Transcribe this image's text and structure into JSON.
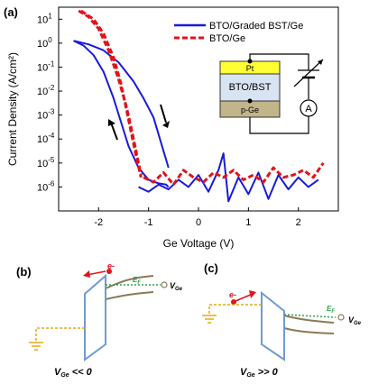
{
  "panels": {
    "a": "(a)",
    "b": "(b)",
    "c": "(c)"
  },
  "chart_data": {
    "type": "line",
    "title": "",
    "xlabel": "Ge Voltage (V)",
    "ylabel": "Current Density  (A/cm²)",
    "xlim": [
      -2.8,
      2.8
    ],
    "ylim_log10": [
      -7,
      1.5
    ],
    "xticks": [
      -2,
      -1,
      0,
      1,
      2
    ],
    "xtick_labels": [
      "-2",
      "-1",
      "0",
      "1",
      "2"
    ],
    "yticks_exp": [
      1,
      0,
      -1,
      -2,
      -3,
      -4,
      -5,
      -6
    ],
    "ytick_labels": [
      {
        "base": "10",
        "exp": "1"
      },
      {
        "base": "10",
        "exp": "0"
      },
      {
        "base": "10",
        "exp": "-1"
      },
      {
        "base": "10",
        "exp": "-2"
      },
      {
        "base": "10",
        "exp": "-3"
      },
      {
        "base": "10",
        "exp": "-4"
      },
      {
        "base": "10",
        "exp": "-5"
      },
      {
        "base": "10",
        "exp": "-6"
      }
    ],
    "legend_position": "top-right",
    "series": [
      {
        "name": "BTO/Graded BST/Ge",
        "color": "#1a1adb",
        "style": "solid",
        "branches": [
          {
            "x": [
              -2.5,
              -2.3,
              -2.1,
              -1.9,
              -1.7,
              -1.55,
              -1.4,
              -1.2,
              -1.0,
              -0.8,
              -0.65,
              -0.6
            ],
            "log10_y": [
              0.1,
              -0.1,
              -0.5,
              -1.2,
              -2.3,
              -3.3,
              -4.3,
              -5.2,
              -5.7,
              -5.85,
              -5.9,
              -6.0
            ]
          },
          {
            "x": [
              -2.5,
              -2.2,
              -1.9,
              -1.6,
              -1.3,
              -1.1,
              -0.9,
              -0.8,
              -0.7,
              -0.6
            ],
            "log10_y": [
              0.1,
              -0.05,
              -0.3,
              -0.8,
              -1.6,
              -2.3,
              -3.1,
              -3.8,
              -4.5,
              -5.2
            ]
          }
        ],
        "noise_x": [
          -1.2,
          -1.0,
          -0.8,
          -0.6,
          -0.4,
          -0.2,
          0.0,
          0.2,
          0.4,
          0.5,
          0.6,
          0.8,
          1.0,
          1.2,
          1.4,
          1.6,
          1.8,
          2.0,
          2.2,
          2.4
        ],
        "noise_log10_y": [
          -6.0,
          -6.2,
          -5.9,
          -6.1,
          -5.7,
          -6.0,
          -5.5,
          -6.2,
          -5.3,
          -4.6,
          -6.6,
          -5.6,
          -6.3,
          -5.4,
          -6.5,
          -5.5,
          -6.1,
          -5.6,
          -6.0,
          -5.7
        ]
      },
      {
        "name": "BTO/Ge",
        "color": "#e0141a",
        "style": "dashed",
        "branches": [
          {
            "x": [
              -2.4,
              -2.2,
              -2.0,
              -1.8,
              -1.6,
              -1.45,
              -1.35,
              -1.25,
              -1.15
            ],
            "log10_y": [
              1.35,
              1.1,
              0.6,
              -0.3,
              -1.5,
              -2.6,
              -3.5,
              -4.5,
              -5.5
            ]
          },
          {
            "x": [
              -2.35,
              -2.1,
              -1.9,
              -1.7,
              -1.55,
              -1.45,
              -1.35,
              -1.25,
              -1.15
            ],
            "log10_y": [
              1.35,
              1.0,
              0.4,
              -0.6,
              -1.7,
              -2.7,
              -3.7,
              -4.7,
              -5.6
            ]
          }
        ],
        "noise_x": [
          -1.1,
          -0.9,
          -0.7,
          -0.5,
          -0.3,
          -0.1,
          0.1,
          0.3,
          0.5,
          0.7,
          0.9,
          1.1,
          1.3,
          1.5,
          1.7,
          1.9,
          2.1,
          2.3,
          2.5
        ],
        "noise_log10_y": [
          -5.6,
          -5.8,
          -5.4,
          -5.9,
          -5.3,
          -5.6,
          -5.8,
          -5.4,
          -5.6,
          -5.3,
          -5.7,
          -5.5,
          -5.8,
          -5.2,
          -5.6,
          -5.5,
          -5.3,
          -5.6,
          -5.0
        ]
      }
    ],
    "inset_labels": {
      "top": "Pt",
      "middle": "BTO/BST",
      "bottom": "p-Ge",
      "meter": "A"
    }
  },
  "diagrams": {
    "b": {
      "electron_label": "e-",
      "fermi_label": "E",
      "fermi_sub": "F",
      "voltage_label": "V",
      "voltage_sub": "Ge",
      "caption_prefix": "V",
      "caption_sub": "Ge",
      "caption_rest": " << 0"
    },
    "c": {
      "electron_label": "e-",
      "fermi_label": "E",
      "fermi_sub": "F",
      "voltage_label": "V",
      "voltage_sub": "Ge",
      "caption_prefix": "V",
      "caption_sub": "Ge",
      "caption_rest": " >> 0"
    },
    "colors": {
      "barrier": "#6f9bd1",
      "band": "#8b7a55",
      "fermi": "#2aa34a",
      "lead": "#e6a817",
      "electron": "#e0141a"
    }
  }
}
